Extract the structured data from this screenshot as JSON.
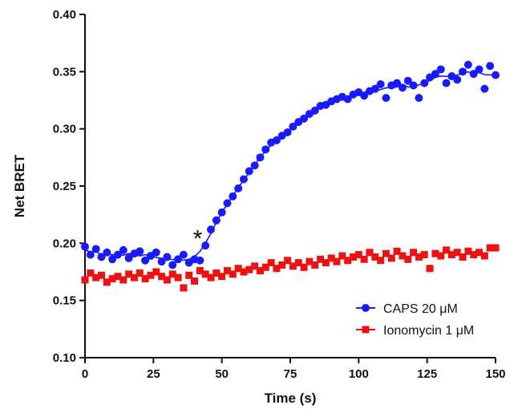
{
  "chart_data": {
    "type": "scatter",
    "xlabel": "Time (s)",
    "ylabel": "Net BRET",
    "xlim": [
      0,
      150
    ],
    "ylim": [
      0.1,
      0.4
    ],
    "x_ticks": [
      "0",
      "25",
      "50",
      "75",
      "100",
      "125",
      "150"
    ],
    "y_ticks": [
      "0.10",
      "0.15",
      "0.20",
      "0.25",
      "0.30",
      "0.35",
      "0.40"
    ],
    "grid": false,
    "legend_position": "bottom-right",
    "annotations": [
      {
        "text": "*",
        "x": 40,
        "y": 0.2
      }
    ],
    "series": [
      {
        "name": "CAPS 20 μM",
        "color": "#1a1aff",
        "marker": "circle",
        "fit_line": true,
        "points": [
          [
            0,
            0.197
          ],
          [
            2,
            0.19
          ],
          [
            4,
            0.195
          ],
          [
            6,
            0.188
          ],
          [
            8,
            0.192
          ],
          [
            10,
            0.186
          ],
          [
            12,
            0.19
          ],
          [
            14,
            0.194
          ],
          [
            16,
            0.187
          ],
          [
            18,
            0.191
          ],
          [
            20,
            0.193
          ],
          [
            22,
            0.185
          ],
          [
            24,
            0.189
          ],
          [
            26,
            0.192
          ],
          [
            28,
            0.184
          ],
          [
            30,
            0.188
          ],
          [
            32,
            0.181
          ],
          [
            34,
            0.186
          ],
          [
            36,
            0.19
          ],
          [
            38,
            0.183
          ],
          [
            40,
            0.186
          ],
          [
            42,
            0.185
          ],
          [
            44,
            0.198
          ],
          [
            46,
            0.212
          ],
          [
            48,
            0.22
          ],
          [
            50,
            0.227
          ],
          [
            52,
            0.235
          ],
          [
            54,
            0.241
          ],
          [
            56,
            0.248
          ],
          [
            58,
            0.256
          ],
          [
            60,
            0.263
          ],
          [
            62,
            0.268
          ],
          [
            64,
            0.275
          ],
          [
            66,
            0.282
          ],
          [
            68,
            0.288
          ],
          [
            70,
            0.29
          ],
          [
            72,
            0.294
          ],
          [
            74,
            0.297
          ],
          [
            76,
            0.302
          ],
          [
            78,
            0.306
          ],
          [
            80,
            0.309
          ],
          [
            82,
            0.313
          ],
          [
            84,
            0.316
          ],
          [
            86,
            0.32
          ],
          [
            88,
            0.321
          ],
          [
            90,
            0.324
          ],
          [
            92,
            0.326
          ],
          [
            94,
            0.328
          ],
          [
            96,
            0.326
          ],
          [
            98,
            0.33
          ],
          [
            100,
            0.332
          ],
          [
            102,
            0.329
          ],
          [
            104,
            0.333
          ],
          [
            106,
            0.335
          ],
          [
            108,
            0.339
          ],
          [
            110,
            0.327
          ],
          [
            112,
            0.338
          ],
          [
            114,
            0.34
          ],
          [
            116,
            0.336
          ],
          [
            118,
            0.342
          ],
          [
            120,
            0.338
          ],
          [
            122,
            0.327
          ],
          [
            124,
            0.34
          ],
          [
            126,
            0.345
          ],
          [
            128,
            0.348
          ],
          [
            130,
            0.352
          ],
          [
            132,
            0.34
          ],
          [
            134,
            0.346
          ],
          [
            136,
            0.343
          ],
          [
            138,
            0.35
          ],
          [
            140,
            0.356
          ],
          [
            142,
            0.348
          ],
          [
            144,
            0.352
          ],
          [
            146,
            0.335
          ],
          [
            148,
            0.355
          ],
          [
            150,
            0.347
          ]
        ]
      },
      {
        "name": "Ionomycin 1 μM",
        "color": "#ee1111",
        "marker": "square",
        "fit_line": false,
        "points": [
          [
            0,
            0.168
          ],
          [
            2,
            0.174
          ],
          [
            4,
            0.17
          ],
          [
            6,
            0.172
          ],
          [
            8,
            0.166
          ],
          [
            10,
            0.169
          ],
          [
            12,
            0.171
          ],
          [
            14,
            0.168
          ],
          [
            16,
            0.173
          ],
          [
            18,
            0.17
          ],
          [
            20,
            0.174
          ],
          [
            22,
            0.169
          ],
          [
            24,
            0.172
          ],
          [
            26,
            0.175
          ],
          [
            28,
            0.171
          ],
          [
            30,
            0.168
          ],
          [
            32,
            0.173
          ],
          [
            34,
            0.17
          ],
          [
            36,
            0.161
          ],
          [
            38,
            0.172
          ],
          [
            40,
            0.167
          ],
          [
            42,
            0.176
          ],
          [
            44,
            0.173
          ],
          [
            46,
            0.17
          ],
          [
            48,
            0.174
          ],
          [
            50,
            0.171
          ],
          [
            52,
            0.176
          ],
          [
            54,
            0.173
          ],
          [
            56,
            0.178
          ],
          [
            58,
            0.175
          ],
          [
            60,
            0.177
          ],
          [
            62,
            0.18
          ],
          [
            64,
            0.176
          ],
          [
            66,
            0.179
          ],
          [
            68,
            0.183
          ],
          [
            70,
            0.178
          ],
          [
            72,
            0.181
          ],
          [
            74,
            0.185
          ],
          [
            76,
            0.18
          ],
          [
            78,
            0.183
          ],
          [
            80,
            0.179
          ],
          [
            82,
            0.184
          ],
          [
            84,
            0.181
          ],
          [
            86,
            0.186
          ],
          [
            88,
            0.183
          ],
          [
            90,
            0.187
          ],
          [
            92,
            0.184
          ],
          [
            94,
            0.189
          ],
          [
            96,
            0.185
          ],
          [
            98,
            0.188
          ],
          [
            100,
            0.19
          ],
          [
            102,
            0.186
          ],
          [
            104,
            0.192
          ],
          [
            106,
            0.188
          ],
          [
            108,
            0.185
          ],
          [
            110,
            0.191
          ],
          [
            112,
            0.187
          ],
          [
            114,
            0.193
          ],
          [
            116,
            0.189
          ],
          [
            118,
            0.186
          ],
          [
            120,
            0.192
          ],
          [
            122,
            0.188
          ],
          [
            124,
            0.19
          ],
          [
            126,
            0.178
          ],
          [
            128,
            0.191
          ],
          [
            130,
            0.189
          ],
          [
            132,
            0.194
          ],
          [
            134,
            0.19
          ],
          [
            136,
            0.192
          ],
          [
            138,
            0.188
          ],
          [
            140,
            0.193
          ],
          [
            142,
            0.19
          ],
          [
            144,
            0.192
          ],
          [
            146,
            0.189
          ],
          [
            148,
            0.196
          ],
          [
            150,
            0.196
          ]
        ]
      }
    ]
  }
}
